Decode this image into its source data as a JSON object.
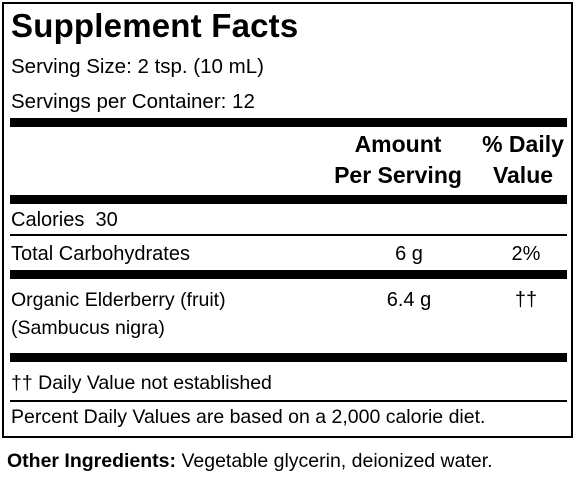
{
  "label": {
    "title": "Supplement Facts",
    "serving_size": "Serving Size: 2 tsp. (10 mL)",
    "servings_per_container": "Servings per Container: 12"
  },
  "table_header": {
    "amount_line1": "Amount",
    "amount_line2": "Per Serving",
    "dv_line1": "% Daily",
    "dv_line2": "Value"
  },
  "rows": {
    "calories": "Calories  30",
    "total_carbohydrates": {
      "name": "Total Carbohydrates",
      "amount": "6 g",
      "daily_value": "2%"
    },
    "organic_elderberry": {
      "name_line1": "Organic Elderberry (fruit)",
      "name_line2": "(Sambucus nigra)",
      "amount": "6.4 g",
      "daily_value": "††"
    }
  },
  "footnotes": {
    "not_established": "†† Daily Value not established",
    "percent_dv": "Percent Daily Values are based on a 2,000 calorie diet."
  },
  "other_ingredients": {
    "label": "Other Ingredients:",
    "value": " Vegetable glycerin, deionized water."
  }
}
